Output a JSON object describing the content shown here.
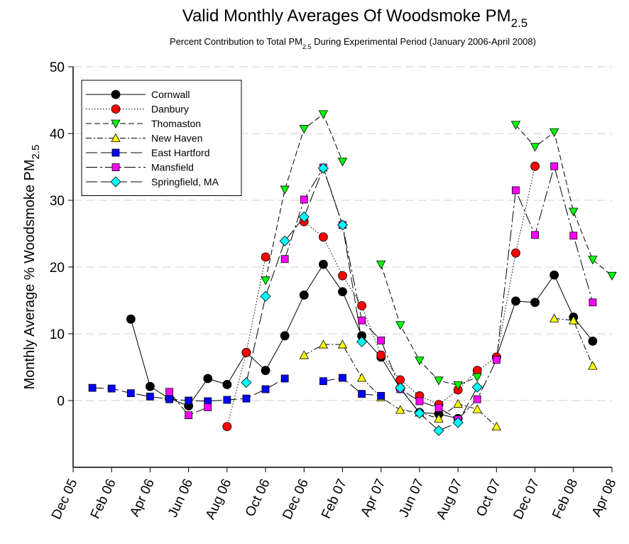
{
  "chart_data": {
    "type": "line",
    "title": [
      "Valid Monthly Averages Of Woodsmoke PM",
      "2.5"
    ],
    "subtitle": [
      "Percent Contribution to Total PM",
      "2.5",
      " During Experimental Period (January 2006-April 2008)"
    ],
    "y_label": [
      "Monthly Average % Woodsmoke PM",
      "2.5"
    ],
    "categories": [
      "Dec 05",
      null,
      "Feb 06",
      null,
      "Apr 06",
      null,
      "Jun 06",
      null,
      "Aug 06",
      null,
      "Oct 06",
      null,
      "Dec 06",
      null,
      "Feb 07",
      null,
      "Apr 07",
      null,
      "Jun 07",
      null,
      "Aug 07",
      null,
      "Oct 07",
      null,
      "Dec 07",
      null,
      "Feb 08",
      null,
      "Apr 08"
    ],
    "ylim": [
      -10,
      50
    ],
    "yticks": [
      0,
      10,
      20,
      30,
      40,
      50
    ],
    "grid": true,
    "legend": "upper left",
    "series": [
      {
        "name": "Cornwall",
        "color": "#000000",
        "marker": "circle",
        "line_style": "solid",
        "values": [
          null,
          null,
          null,
          12.2,
          2.1,
          0.3,
          -0.8,
          3.3,
          2.4,
          7.2,
          4.5,
          9.7,
          15.8,
          20.4,
          16.3,
          9.7,
          6.5,
          1.8,
          -1.8,
          -2.0,
          -2.7,
          null,
          6.5,
          14.9,
          14.7,
          18.8,
          12.5,
          8.9,
          null
        ]
      },
      {
        "name": "Danbury",
        "color": "#ff0000",
        "marker": "circle",
        "line_style": "dotted",
        "values": [
          null,
          null,
          null,
          null,
          null,
          null,
          null,
          null,
          -3.9,
          7.2,
          21.5,
          null,
          26.8,
          24.5,
          18.7,
          14.2,
          6.8,
          3.1,
          0.7,
          -0.6,
          1.6,
          4.5,
          6.5,
          22.1,
          35.1,
          null,
          null,
          null,
          null
        ]
      },
      {
        "name": "Thomaston",
        "color": "#00ff00",
        "marker": "triangle-down",
        "line_style": "dashed",
        "values": [
          null,
          null,
          null,
          null,
          null,
          null,
          null,
          null,
          null,
          null,
          18.0,
          31.6,
          40.7,
          42.9,
          35.8,
          null,
          20.4,
          11.3,
          6.0,
          3.0,
          2.3,
          3.5,
          null,
          41.3,
          38.0,
          40.2,
          28.3,
          21.1,
          18.7
        ]
      },
      {
        "name": "New Haven",
        "color": "#ffff00",
        "marker": "triangle-up",
        "line_style": "dashdot",
        "values": [
          null,
          null,
          null,
          null,
          null,
          null,
          null,
          null,
          null,
          null,
          null,
          null,
          6.8,
          8.4,
          8.4,
          3.4,
          0.5,
          -1.4,
          -1.8,
          -2.7,
          -0.5,
          -1.3,
          -3.9,
          null,
          null,
          12.3,
          12.0,
          5.2,
          null
        ]
      },
      {
        "name": "East Hartford",
        "color": "#0000ff",
        "marker": "square",
        "line_style": "longdash",
        "values": [
          null,
          1.9,
          1.8,
          1.1,
          0.6,
          0.2,
          0.0,
          -0.1,
          0.1,
          0.3,
          1.7,
          3.3,
          null,
          2.9,
          3.4,
          1.0,
          0.7,
          null,
          null,
          null,
          null,
          null,
          null,
          null,
          null,
          null,
          null,
          null,
          null
        ]
      },
      {
        "name": "Mansfield",
        "color": "#ff00ff",
        "marker": "square",
        "line_style": "dashdotlong",
        "values": [
          null,
          null,
          null,
          null,
          null,
          1.3,
          -2.2,
          -1.0,
          null,
          null,
          null,
          21.2,
          30.1,
          34.9,
          26.3,
          12.0,
          9.0,
          1.7,
          -0.1,
          -1.1,
          -2.8,
          0.2,
          6.1,
          31.5,
          24.8,
          35.1,
          24.7,
          14.7,
          null
        ]
      },
      {
        "name": "Springfield, MA",
        "color": "#00ffff",
        "marker": "diamond",
        "line_style": "longdash",
        "values": [
          null,
          null,
          null,
          null,
          null,
          null,
          null,
          null,
          null,
          2.7,
          15.6,
          23.9,
          27.5,
          34.8,
          26.3,
          8.8,
          null,
          1.9,
          -1.9,
          -4.5,
          -3.3,
          2.0,
          null,
          null,
          null,
          null,
          null,
          null,
          null
        ]
      }
    ]
  }
}
